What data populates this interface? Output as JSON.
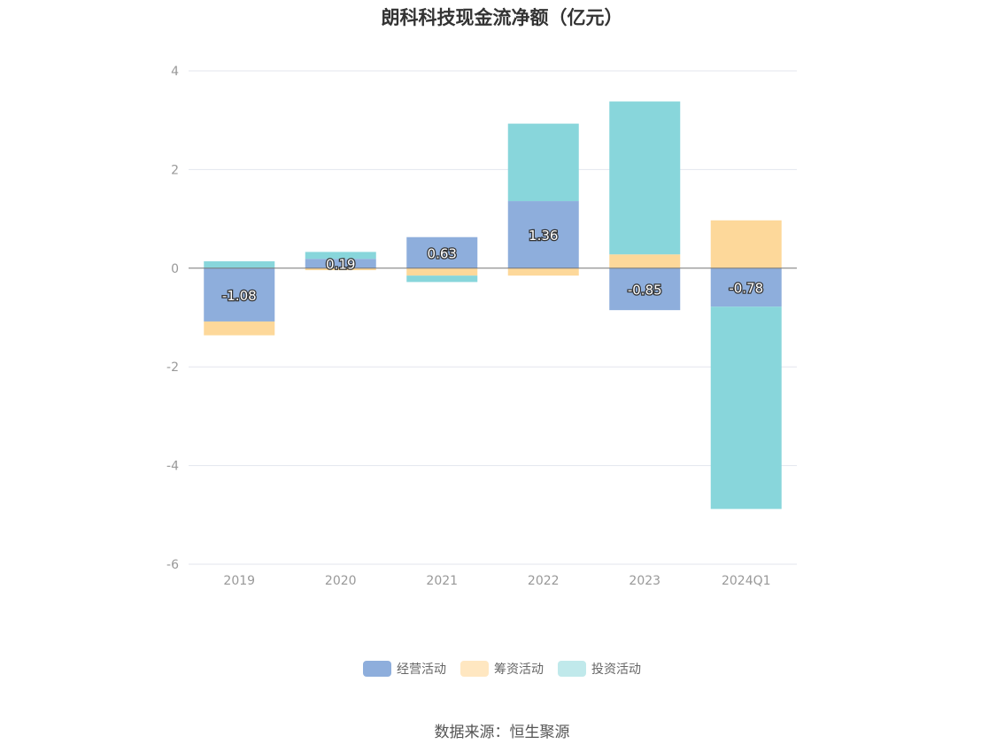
{
  "chart_data": {
    "type": "bar",
    "stacked": true,
    "title": "朗科科技现金流净额（亿元）",
    "categories": [
      "2019",
      "2020",
      "2021",
      "2022",
      "2023",
      "2024Q1"
    ],
    "ylim": [
      -6,
      4
    ],
    "yticks": [
      4,
      2,
      0,
      -2,
      -4,
      -6
    ],
    "grid": true,
    "legend_position": "bottom",
    "series": [
      {
        "name": "经营活动",
        "color": "#8eaedc",
        "values": [
          -1.08,
          0.19,
          0.63,
          1.36,
          -0.85,
          -0.78
        ],
        "labels": [
          "-1.08",
          "0.19",
          "0.63",
          "1.36",
          "-0.85",
          "-0.78"
        ]
      },
      {
        "name": "筹资活动",
        "color": "#fdd89a",
        "values": [
          -0.28,
          -0.04,
          -0.15,
          -0.15,
          0.28,
          0.97
        ]
      },
      {
        "name": "投资活动",
        "color": "#88d6db",
        "values": [
          0.14,
          0.14,
          -0.13,
          1.57,
          3.1,
          -4.1
        ]
      }
    ]
  },
  "legend": {
    "swatch_colors": [
      "#8eaedc",
      "#ffe7c1",
      "#c0e9eb"
    ]
  },
  "source": "数据来源：恒生聚源"
}
